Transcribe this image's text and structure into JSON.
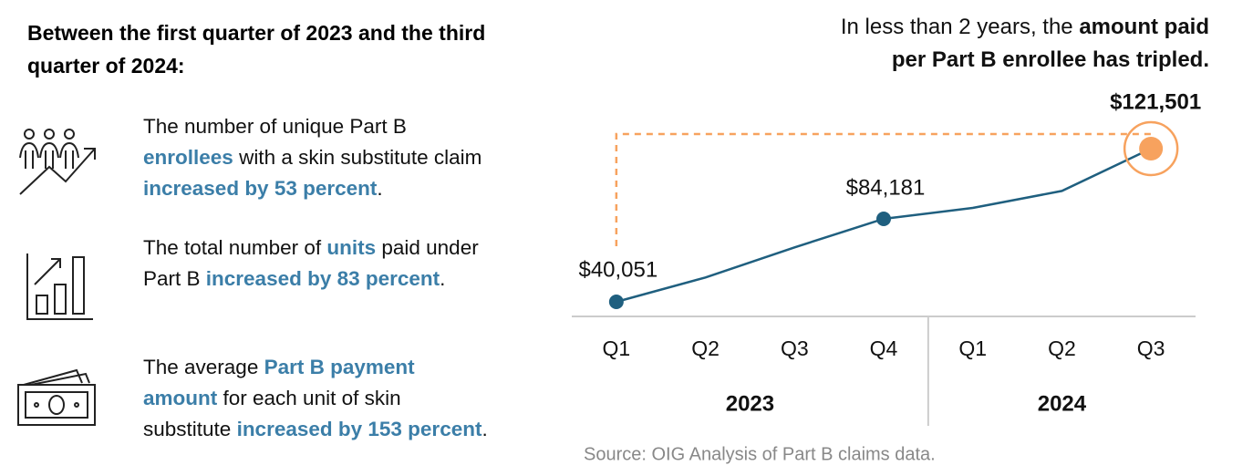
{
  "panel": {
    "heading": "Between the first quarter of 2023 and the third quarter of 2024:",
    "items": [
      [
        {
          "text": "The number of unique Part B ",
          "highlight": false
        },
        {
          "text": "enrollees",
          "highlight": true
        },
        {
          "text": " with a skin substitute claim ",
          "highlight": false
        },
        {
          "text": "increased by 53 percent",
          "highlight": true
        },
        {
          "text": ".",
          "highlight": false
        }
      ],
      [
        {
          "text": "The total number of ",
          "highlight": false
        },
        {
          "text": "units",
          "highlight": true
        },
        {
          "text": " paid under Part B ",
          "highlight": false
        },
        {
          "text": "increased by 83 percent",
          "highlight": true
        },
        {
          "text": ".",
          "highlight": false
        }
      ],
      [
        {
          "text": "The average ",
          "highlight": false
        },
        {
          "text": "Part B payment amount",
          "highlight": true
        },
        {
          "text": " for each unit of skin substitute ",
          "highlight": false
        },
        {
          "text": "increased by 153 percent",
          "highlight": true
        },
        {
          "text": ".",
          "highlight": false
        }
      ]
    ],
    "highlight_color": "#3b7ea8"
  },
  "chart_data": {
    "type": "line",
    "annotation": [
      [
        {
          "text": "In less than 2 years, the ",
          "bold": false
        },
        {
          "text": "amount paid",
          "bold": true
        }
      ],
      [
        {
          "text": "per Part B enrollee has tripled.",
          "bold": true
        }
      ]
    ],
    "categories": [
      "Q1",
      "Q2",
      "Q3",
      "Q4",
      "Q1",
      "Q2",
      "Q3"
    ],
    "groups": [
      {
        "label": "2023",
        "span": 4
      },
      {
        "label": "2024",
        "span": 3
      }
    ],
    "values": [
      40051,
      53000,
      69000,
      84181,
      90000,
      99000,
      121501
    ],
    "value_labels": [
      "$40,051",
      null,
      null,
      "$84,181",
      null,
      null,
      "$121,501"
    ],
    "color": "#1f5f7f",
    "highlight_color": "#f7a25e",
    "source": "Source: OIG Analysis of Part B claims data."
  }
}
